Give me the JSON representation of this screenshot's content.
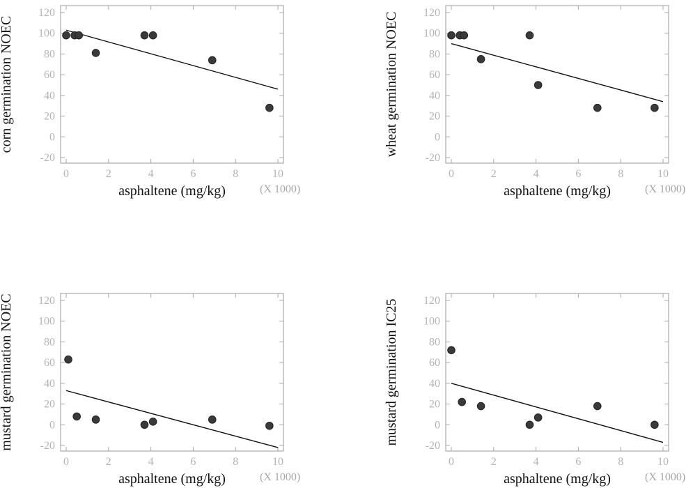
{
  "chart_data": [
    {
      "type": "scatter",
      "title": "",
      "xlabel": "asphaltene (mg/kg)",
      "ylabel": "corn germination NOEC",
      "x_multiplier_label": "(X 1000)",
      "xlim": [
        0,
        10
      ],
      "ylim": [
        -20,
        120
      ],
      "x_ticks": [
        0,
        2,
        4,
        6,
        8,
        10
      ],
      "y_ticks": [
        -20,
        0,
        20,
        40,
        60,
        80,
        100,
        120
      ],
      "grid": false,
      "points": [
        {
          "x": 0.0,
          "y": 98
        },
        {
          "x": 0.4,
          "y": 98
        },
        {
          "x": 0.6,
          "y": 98
        },
        {
          "x": 1.4,
          "y": 81
        },
        {
          "x": 3.7,
          "y": 98
        },
        {
          "x": 4.1,
          "y": 98
        },
        {
          "x": 6.9,
          "y": 74
        },
        {
          "x": 9.6,
          "y": 28
        }
      ],
      "trendline": {
        "x": [
          0.0,
          10.0
        ],
        "y": [
          103,
          46
        ]
      }
    },
    {
      "type": "scatter",
      "title": "",
      "xlabel": "asphaltene (mg/kg)",
      "ylabel": "wheat germination NOEC",
      "x_multiplier_label": "(X 1000)",
      "xlim": [
        0,
        10
      ],
      "ylim": [
        -20,
        120
      ],
      "x_ticks": [
        0,
        2,
        4,
        6,
        8,
        10
      ],
      "y_ticks": [
        -20,
        0,
        20,
        40,
        60,
        80,
        100,
        120
      ],
      "grid": false,
      "points": [
        {
          "x": 0.0,
          "y": 98
        },
        {
          "x": 0.4,
          "y": 98
        },
        {
          "x": 0.6,
          "y": 98
        },
        {
          "x": 1.4,
          "y": 75
        },
        {
          "x": 3.7,
          "y": 98
        },
        {
          "x": 4.1,
          "y": 50
        },
        {
          "x": 6.9,
          "y": 28
        },
        {
          "x": 9.6,
          "y": 28
        }
      ],
      "trendline": {
        "x": [
          0.0,
          10.0
        ],
        "y": [
          90,
          34
        ]
      }
    },
    {
      "type": "scatter",
      "title": "",
      "xlabel": "asphaltene (mg/kg)",
      "ylabel": "mustard germination NOEC",
      "x_multiplier_label": "(X 1000)",
      "xlim": [
        0,
        10
      ],
      "ylim": [
        -20,
        120
      ],
      "x_ticks": [
        0,
        2,
        4,
        6,
        8,
        10
      ],
      "y_ticks": [
        -20,
        0,
        20,
        40,
        60,
        80,
        100,
        120
      ],
      "grid": false,
      "points": [
        {
          "x": 0.1,
          "y": 63
        },
        {
          "x": 0.5,
          "y": 8
        },
        {
          "x": 1.4,
          "y": 5
        },
        {
          "x": 3.7,
          "y": 0
        },
        {
          "x": 4.1,
          "y": 3
        },
        {
          "x": 6.9,
          "y": 5
        },
        {
          "x": 9.6,
          "y": -1
        }
      ],
      "trendline": {
        "x": [
          0.0,
          10.0
        ],
        "y": [
          33,
          -22
        ]
      }
    },
    {
      "type": "scatter",
      "title": "",
      "xlabel": "asphaltene (mg/kg)",
      "ylabel": "mustard germination IC25",
      "x_multiplier_label": "(X 1000)",
      "xlim": [
        0,
        10
      ],
      "ylim": [
        -20,
        120
      ],
      "x_ticks": [
        0,
        2,
        4,
        6,
        8,
        10
      ],
      "y_ticks": [
        -20,
        0,
        20,
        40,
        60,
        80,
        100,
        120
      ],
      "grid": false,
      "points": [
        {
          "x": 0.0,
          "y": 72
        },
        {
          "x": 0.5,
          "y": 22
        },
        {
          "x": 1.4,
          "y": 18
        },
        {
          "x": 3.7,
          "y": 0
        },
        {
          "x": 4.1,
          "y": 7
        },
        {
          "x": 6.9,
          "y": 18
        },
        {
          "x": 9.6,
          "y": 0
        }
      ],
      "trendline": {
        "x": [
          0.0,
          10.0
        ],
        "y": [
          40,
          -17
        ]
      }
    }
  ]
}
